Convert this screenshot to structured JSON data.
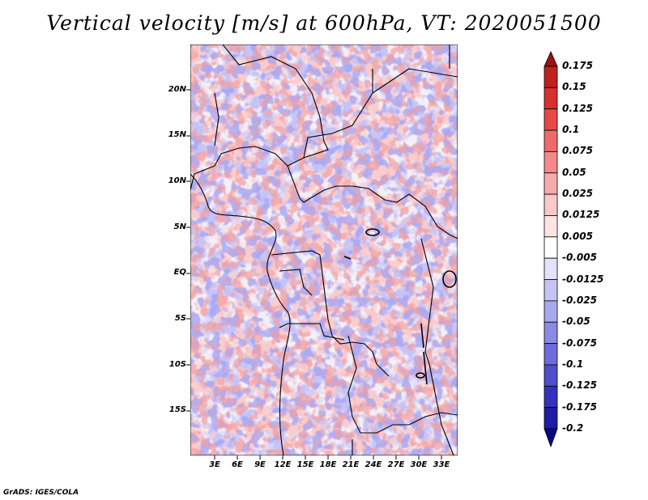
{
  "title": "Vertical velocity [m/s] at 600hPa, VT: 2020051500",
  "credit": "GrADS: IGES/COLA",
  "y_axis_labels": [
    "20N",
    "15N",
    "10N",
    "5N",
    "EQ",
    "5S",
    "10S",
    "15S"
  ],
  "x_axis_labels": [
    "3E",
    "6E",
    "9E",
    "12E",
    "15E",
    "18E",
    "21E",
    "24E",
    "27E",
    "30E",
    "33E"
  ],
  "colorbar": {
    "labels": [
      "0.175",
      "0.15",
      "0.125",
      "0.1",
      "0.075",
      "0.05",
      "0.025",
      "0.0125",
      "0.005",
      "-0.005",
      "-0.0125",
      "-0.025",
      "-0.05",
      "-0.075",
      "-0.1",
      "-0.125",
      "-0.175",
      "-0.2"
    ],
    "colors": [
      "#a01010",
      "#c02020",
      "#d83030",
      "#e84848",
      "#ee6a6a",
      "#f28a8a",
      "#f6aaaa",
      "#f9c8c8",
      "#fce4e4",
      "#ffffff",
      "#e2e2fb",
      "#c4c4f4",
      "#a8a8ee",
      "#8a8ae4",
      "#6c6cdc",
      "#4e4ece",
      "#3232bc",
      "#1c1ca4",
      "#0a0a80"
    ]
  },
  "colors": {
    "background": "#ffffff",
    "border": "#000000",
    "red_accent": "#e05050",
    "blue_accent": "#5a5ae0"
  }
}
